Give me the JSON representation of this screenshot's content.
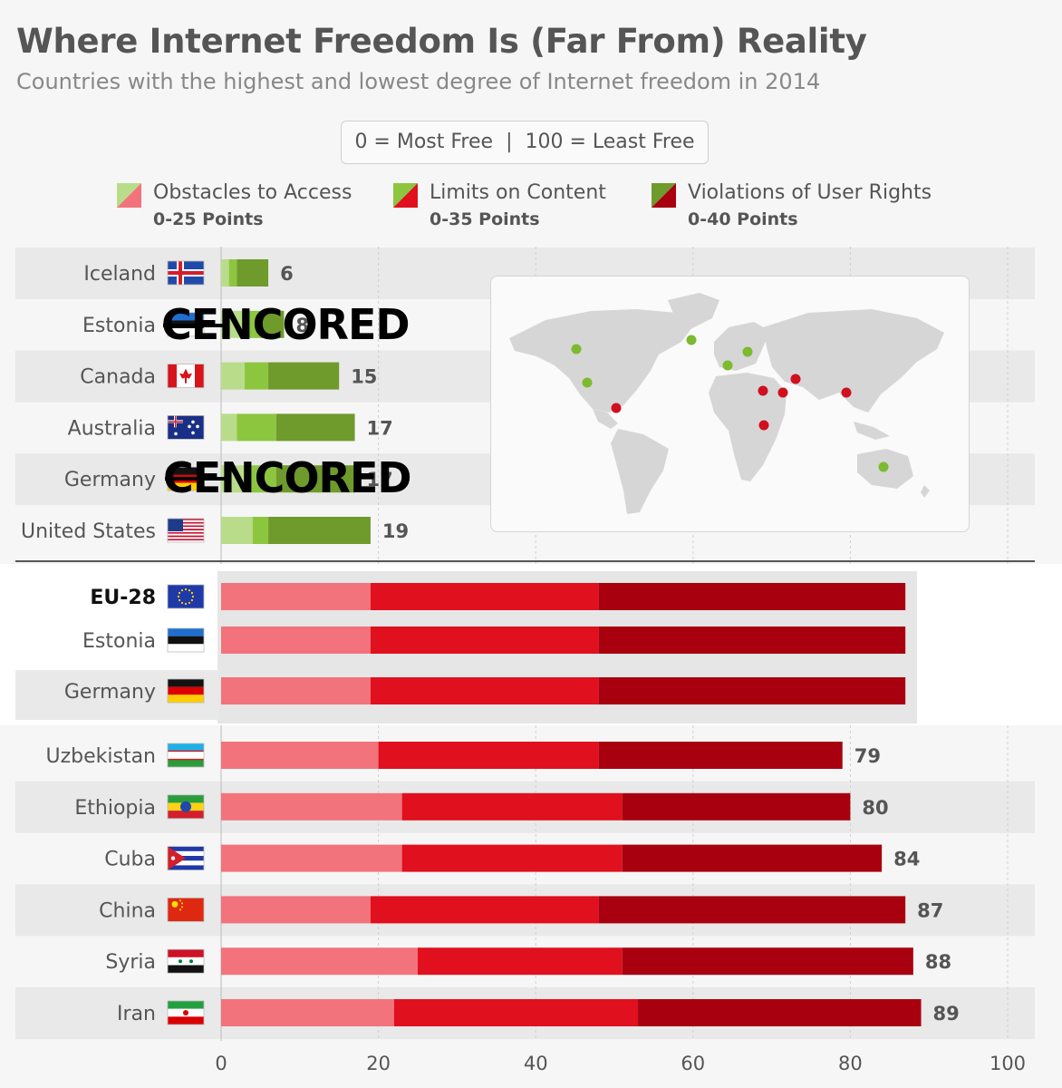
{
  "title": "Where Internet Freedom Is (Far From) Reality",
  "subtitle": "Countries with the highest and lowest degree of Internet freedom in 2014",
  "scale_note": {
    "left": "0 = Most Free",
    "separator": "|",
    "right": "100 = Least Free"
  },
  "legend": [
    {
      "label": "Obstacles to Access",
      "range": "0-25 Points"
    },
    {
      "label": "Limits on Content",
      "range": "0-35 Points"
    },
    {
      "label": "Violations of User Rights",
      "range": "0-40 Points"
    }
  ],
  "censor_text": "CENCORED",
  "colors": {
    "free_access": "#b9dc8a",
    "free_content": "#8cc63f",
    "free_rights": "#6f9a2c",
    "notfree_access": "#f2737c",
    "notfree_content": "#e0101e",
    "notfree_rights": "#a8000e",
    "map_land": "#d6d6d6",
    "dot_free": "#7cba2f",
    "dot_notfree": "#d0101e",
    "row_band": "#e9e9e9"
  },
  "chart_data": {
    "type": "bar",
    "orientation": "horizontal",
    "stacked": true,
    "xlim": [
      0,
      100
    ],
    "xticks": [
      0,
      20,
      40,
      60,
      80,
      100
    ],
    "xlabel": "",
    "ylabel": "",
    "series": [
      {
        "name": "Obstacles to Access"
      },
      {
        "name": "Limits on Content"
      },
      {
        "name": "Violations of User Rights"
      }
    ],
    "top_group": [
      {
        "country": "Iceland",
        "flag": "iceland-flag",
        "total": 6,
        "access": 1,
        "content": 1,
        "rights": 4,
        "censored": false
      },
      {
        "country": "Estonia",
        "flag": "estonia-flag",
        "total": 8,
        "access": 3,
        "content": 2,
        "rights": 3,
        "censored": true
      },
      {
        "country": "Canada",
        "flag": "canada-flag",
        "total": 15,
        "access": 3,
        "content": 3,
        "rights": 9,
        "censored": false
      },
      {
        "country": "Australia",
        "flag": "australia-flag",
        "total": 17,
        "access": 2,
        "content": 5,
        "rights": 10,
        "censored": false
      },
      {
        "country": "Germany",
        "flag": "germany-flag",
        "total": 17,
        "access": 3,
        "content": 4,
        "rights": 10,
        "censored": true
      },
      {
        "country": "United States",
        "flag": "usa-flag",
        "total": 19,
        "access": 4,
        "content": 2,
        "rights": 13,
        "censored": false
      }
    ],
    "eu_group": [
      {
        "country": "EU-28",
        "flag": "eu-flag",
        "access": 19,
        "content": 29,
        "rights": 39
      },
      {
        "country": "Estonia",
        "flag": "estonia-flag",
        "access": 19,
        "content": 29,
        "rights": 39
      },
      {
        "country": "Germany",
        "flag": "germany-flag",
        "access": 19,
        "content": 29,
        "rights": 39
      }
    ],
    "bottom_group": [
      {
        "country": "Uzbekistan",
        "flag": "uzbekistan-flag",
        "total": 79,
        "access": 20,
        "content": 28,
        "rights": 31
      },
      {
        "country": "Ethiopia",
        "flag": "ethiopia-flag",
        "total": 80,
        "access": 23,
        "content": 28,
        "rights": 29
      },
      {
        "country": "Cuba",
        "flag": "cuba-flag",
        "total": 84,
        "access": 23,
        "content": 28,
        "rights": 33
      },
      {
        "country": "China",
        "flag": "china-flag",
        "total": 87,
        "access": 19,
        "content": 29,
        "rights": 39
      },
      {
        "country": "Syria",
        "flag": "syria-flag",
        "total": 88,
        "access": 25,
        "content": 26,
        "rights": 37
      },
      {
        "country": "Iran",
        "flag": "iran-flag",
        "total": 89,
        "access": 22,
        "content": 31,
        "rights": 36
      }
    ]
  },
  "map": {
    "name": "world-map",
    "free_dots": [
      "Canada",
      "United States",
      "Iceland",
      "Estonia",
      "Germany",
      "Australia"
    ],
    "notfree_dots": [
      "Cuba",
      "Syria",
      "Iran",
      "Uzbekistan",
      "China",
      "Ethiopia"
    ]
  }
}
